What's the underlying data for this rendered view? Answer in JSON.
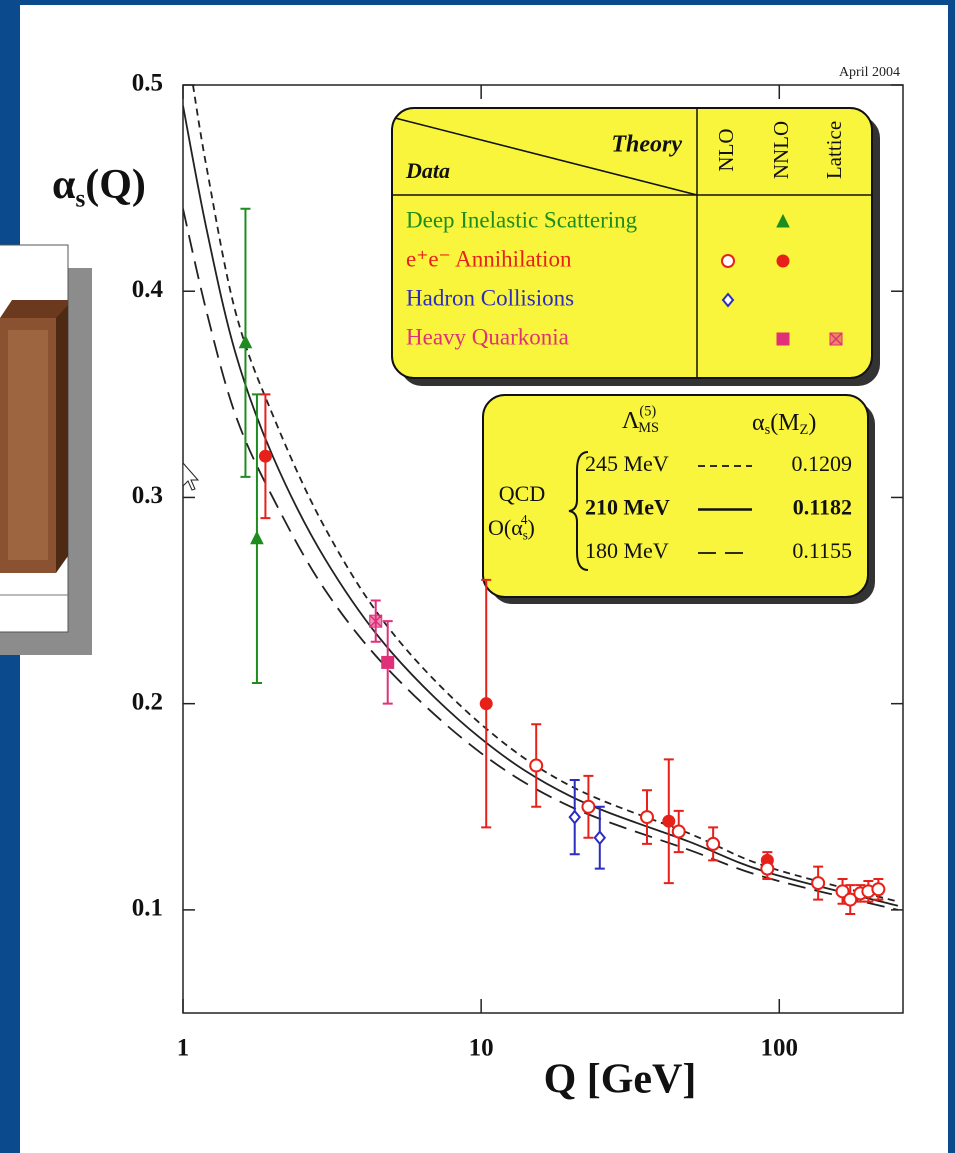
{
  "chart_data": {
    "type": "scatter",
    "annotation": "April 2004",
    "ylabel": [
      "α",
      "s",
      "(Q)"
    ],
    "xlabel": "Q [GeV]",
    "xlog": true,
    "xlim": [
      1,
      260
    ],
    "xticks": [
      1,
      10,
      100
    ],
    "ylim": [
      0.05,
      0.5
    ],
    "yticks": [
      0.1,
      0.2,
      0.3,
      0.4,
      0.5
    ],
    "grid": false,
    "legend": {
      "theory": "Theory",
      "data": "Data",
      "columns": [
        "NLO",
        "NNLO",
        "Lattice"
      ]
    },
    "series": [
      {
        "name": "Deep Inelastic Scattering",
        "color": "#1e8c1e",
        "marker": "triangle",
        "x": [
          1.62,
          1.77
        ],
        "values": [
          0.375,
          0.28
        ],
        "errors": [
          0.065,
          0.07
        ],
        "style": [
          "NNLO",
          "NNLO"
        ]
      },
      {
        "name": "e⁺e⁻ Annihilation",
        "color": "#e8201a",
        "marker": "circle",
        "x": [
          1.89,
          10.4,
          15.3,
          22.9,
          36,
          42.6,
          46,
          60,
          91.2,
          91.2,
          135,
          163,
          173,
          187,
          199,
          215
        ],
        "values": [
          0.32,
          0.2,
          0.17,
          0.15,
          0.145,
          0.143,
          0.138,
          0.132,
          0.124,
          0.12,
          0.113,
          0.109,
          0.105,
          0.108,
          0.109,
          0.11
        ],
        "errors": [
          0.03,
          0.06,
          0.02,
          0.015,
          0.013,
          0.03,
          0.01,
          0.008,
          0.004,
          0.005,
          0.008,
          0.006,
          0.007,
          0.004,
          0.005,
          0.005
        ],
        "style": [
          "NNLO",
          "NNLO",
          "NLO",
          "NLO",
          "NLO",
          "NNLO",
          "NLO",
          "NLO",
          "NNLO",
          "NLO",
          "NLO",
          "NLO",
          "NLO",
          "NLO",
          "NLO",
          "NLO"
        ]
      },
      {
        "name": "Hadron Collisions",
        "color": "#2c2cc0",
        "marker": "diamond",
        "x": [
          20.6,
          25
        ],
        "values": [
          0.145,
          0.135
        ],
        "errors": [
          0.018,
          0.015
        ],
        "style": [
          "NLO",
          "NLO"
        ]
      },
      {
        "name": "Heavy Quarkonia",
        "color": "#e0307a",
        "marker": "square",
        "x": [
          4.43,
          4.86
        ],
        "values": [
          0.24,
          0.22
        ],
        "errors": [
          0.01,
          0.02
        ],
        "style": [
          "Lattice",
          "NNLO"
        ]
      }
    ],
    "fits": {
      "header_lambda": [
        "Λ",
        "(5)",
        "MS"
      ],
      "header_alpha": [
        "α",
        "s",
        "(M",
        "Z",
        ")"
      ],
      "label": "QCD",
      "order": [
        "O(α",
        "s",
        "4",
        ")"
      ],
      "curves": [
        {
          "lambda": "245 MeV",
          "alpha_mz": 0.1209,
          "dash": "short",
          "x": [
            1.08,
            1.2,
            1.5,
            2,
            3,
            5,
            10,
            20,
            50,
            91.2,
            250
          ],
          "values": [
            0.5,
            0.46,
            0.39,
            0.34,
            0.285,
            0.235,
            0.19,
            0.16,
            0.137,
            0.1209,
            0.104
          ]
        },
        {
          "lambda": "210 MeV",
          "alpha_mz": 0.1182,
          "dash": "solid",
          "x": [
            1,
            1.2,
            1.5,
            2,
            3,
            5,
            10,
            20,
            50,
            91.2,
            250
          ],
          "values": [
            0.49,
            0.43,
            0.37,
            0.32,
            0.27,
            0.225,
            0.183,
            0.155,
            0.133,
            0.1182,
            0.102
          ]
        },
        {
          "lambda": "180 MeV",
          "alpha_mz": 0.1155,
          "dash": "long",
          "x": [
            1,
            1.2,
            1.5,
            2,
            3,
            5,
            10,
            20,
            50,
            91.2,
            250
          ],
          "values": [
            0.44,
            0.39,
            0.34,
            0.3,
            0.255,
            0.215,
            0.176,
            0.15,
            0.129,
            0.1155,
            0.1
          ]
        }
      ]
    }
  }
}
